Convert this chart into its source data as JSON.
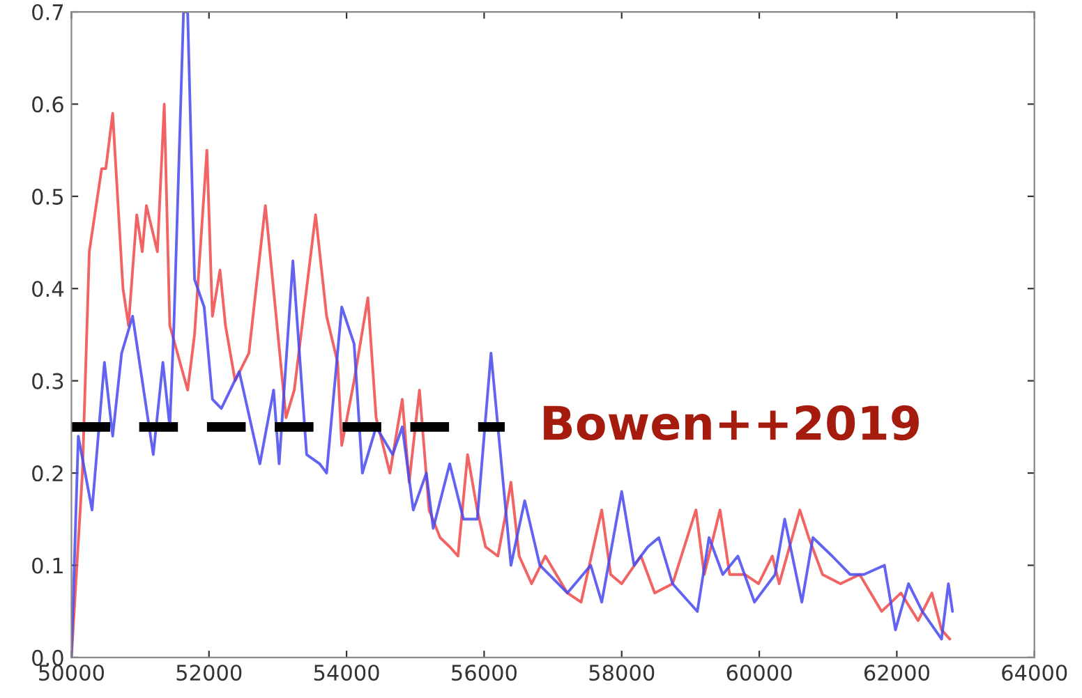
{
  "chart_data": {
    "type": "line",
    "xlim": [
      50000,
      64000
    ],
    "xticks": [
      50000,
      52000,
      54000,
      56000,
      58000,
      60000,
      62000,
      64000
    ],
    "ylim": [
      0,
      0.7
    ],
    "yticks": [
      {
        "value": 0,
        "label": "0.0"
      },
      0.1,
      0.2,
      0.3,
      0.4,
      0.5,
      0.6,
      0.7
    ],
    "grid": false,
    "legend": false,
    "series": [
      {
        "color": "#f04848",
        "x": [
          50000,
          50160,
          50260,
          50440,
          50500,
          50600,
          50750,
          50830,
          50950,
          51030,
          51090,
          51250,
          51350,
          51430,
          51690,
          51790,
          51970,
          52050,
          52160,
          52240,
          52380,
          52580,
          52820,
          53120,
          53240,
          53550,
          53710,
          53870,
          53930,
          54110,
          54310,
          54430,
          54630,
          54810,
          54910,
          55060,
          55200,
          55360,
          55500,
          55620,
          55760,
          55900,
          56020,
          56200,
          56300,
          56390,
          56510,
          56690,
          56890,
          57210,
          57410,
          57710,
          57840,
          58000,
          58280,
          58480,
          58740,
          59080,
          59200,
          59430,
          59570,
          59790,
          59990,
          60190,
          60290,
          60590,
          60720,
          60920,
          61180,
          61460,
          61780,
          62060,
          62310,
          62510,
          62650,
          62770
        ],
        "values": [
          0.0,
          0.2,
          0.44,
          0.53,
          0.53,
          0.59,
          0.4,
          0.36,
          0.48,
          0.44,
          0.49,
          0.44,
          0.6,
          0.36,
          0.29,
          0.35,
          0.55,
          0.37,
          0.42,
          0.36,
          0.3,
          0.33,
          0.49,
          0.26,
          0.29,
          0.48,
          0.37,
          0.32,
          0.23,
          0.3,
          0.39,
          0.26,
          0.2,
          0.28,
          0.19,
          0.29,
          0.16,
          0.13,
          0.12,
          0.11,
          0.22,
          0.16,
          0.12,
          0.11,
          0.15,
          0.19,
          0.11,
          0.08,
          0.11,
          0.07,
          0.06,
          0.16,
          0.09,
          0.08,
          0.11,
          0.07,
          0.08,
          0.16,
          0.09,
          0.16,
          0.09,
          0.09,
          0.08,
          0.11,
          0.08,
          0.16,
          0.13,
          0.09,
          0.08,
          0.09,
          0.05,
          0.07,
          0.04,
          0.07,
          0.03,
          0.02
        ]
      },
      {
        "color": "#4848f0",
        "x": [
          50000,
          50100,
          50300,
          50480,
          50600,
          50730,
          50890,
          50990,
          51190,
          51330,
          51430,
          51490,
          51630,
          51690,
          51790,
          51930,
          52050,
          52180,
          52440,
          52740,
          52940,
          53020,
          53220,
          53420,
          53610,
          53710,
          53930,
          54110,
          54230,
          54430,
          54670,
          54810,
          54970,
          55160,
          55260,
          55500,
          55700,
          55900,
          56100,
          56390,
          56590,
          56810,
          57210,
          57550,
          57710,
          58000,
          58180,
          58380,
          58540,
          58740,
          59100,
          59270,
          59470,
          59690,
          59930,
          60230,
          60370,
          60620,
          60780,
          61060,
          61320,
          61520,
          61820,
          61980,
          62170,
          62370,
          62650,
          62750,
          62810
        ],
        "values": [
          0.0,
          0.24,
          0.16,
          0.32,
          0.24,
          0.33,
          0.37,
          0.32,
          0.22,
          0.32,
          0.25,
          0.36,
          0.7,
          0.7,
          0.41,
          0.38,
          0.28,
          0.27,
          0.31,
          0.21,
          0.29,
          0.21,
          0.43,
          0.22,
          0.21,
          0.2,
          0.38,
          0.34,
          0.2,
          0.25,
          0.22,
          0.25,
          0.16,
          0.2,
          0.14,
          0.21,
          0.15,
          0.15,
          0.33,
          0.1,
          0.17,
          0.1,
          0.07,
          0.1,
          0.06,
          0.18,
          0.1,
          0.12,
          0.13,
          0.08,
          0.05,
          0.13,
          0.09,
          0.11,
          0.06,
          0.09,
          0.15,
          0.06,
          0.13,
          0.11,
          0.09,
          0.09,
          0.1,
          0.03,
          0.08,
          0.05,
          0.02,
          0.08,
          0.05
        ]
      },
      {
        "name": "Bowen++2019",
        "color": "#000000",
        "line_style": "dashed",
        "x": [
          50000,
          56300
        ],
        "values": [
          0.25,
          0.25
        ]
      }
    ]
  }
}
